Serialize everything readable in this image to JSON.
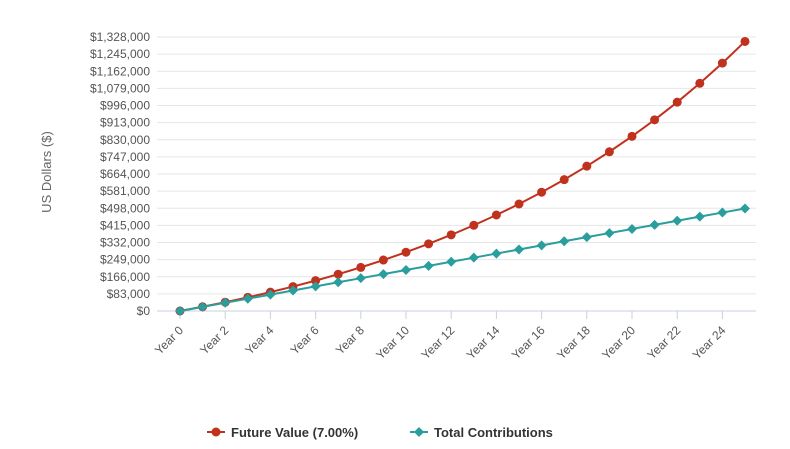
{
  "chart_data": {
    "type": "line",
    "xlabel": "",
    "ylabel": "US Dollars ($)",
    "ylim": [
      0,
      1328000
    ],
    "yticks": [
      0,
      83000,
      166000,
      249000,
      332000,
      415000,
      498000,
      581000,
      664000,
      747000,
      830000,
      913000,
      996000,
      1079000,
      1162000,
      1245000,
      1328000
    ],
    "ytick_labels": [
      "$0",
      "$83,000",
      "$166,000",
      "$249,000",
      "$332,000",
      "$415,000",
      "$498,000",
      "$581,000",
      "$664,000",
      "$747,000",
      "$830,000",
      "$913,000",
      "$996,000",
      "$1,079,000",
      "$1,162,000",
      "$1,245,000",
      "$1,328,000"
    ],
    "x": [
      0,
      1,
      2,
      3,
      4,
      5,
      6,
      7,
      8,
      9,
      10,
      11,
      12,
      13,
      14,
      15,
      16,
      17,
      18,
      19,
      20,
      21,
      22,
      23,
      24,
      25
    ],
    "xlim": [
      0,
      25
    ],
    "xticks": [
      0,
      2,
      4,
      6,
      8,
      10,
      12,
      14,
      16,
      18,
      20,
      22,
      24
    ],
    "xtick_labels": [
      "Year 0",
      "Year 2",
      "Year 4",
      "Year 6",
      "Year 8",
      "Year 10",
      "Year 12",
      "Year 14",
      "Year 16",
      "Year 18",
      "Year 20",
      "Year 22",
      "Year 24"
    ],
    "grid": true,
    "legend_position": "bottom-center",
    "series": [
      {
        "name": "Future Value (7.00%)",
        "color": "#c0321e",
        "marker": "circle",
        "values": [
          0,
          20600,
          42600,
          66200,
          91400,
          118400,
          147300,
          178300,
          211400,
          246900,
          284800,
          325500,
          369000,
          415500,
          465300,
          518600,
          575600,
          636600,
          701900,
          771800,
          846500,
          926500,
          1012100,
          1103600,
          1201600,
          1306400
        ]
      },
      {
        "name": "Total Contributions",
        "color": "#2a9d9d",
        "marker": "diamond",
        "values": [
          0,
          19880,
          39760,
          59640,
          79520,
          99400,
          119280,
          139160,
          159040,
          178920,
          198800,
          218680,
          238560,
          258440,
          278320,
          298200,
          318080,
          337960,
          357840,
          377720,
          397600,
          417480,
          437360,
          457240,
          477120,
          497000
        ]
      }
    ]
  }
}
